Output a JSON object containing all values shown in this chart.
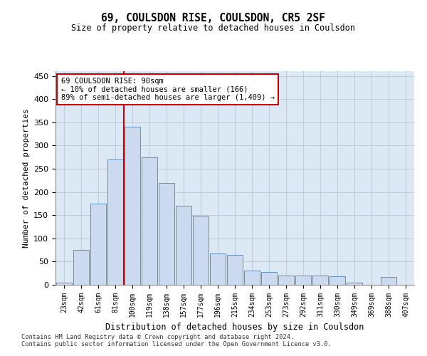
{
  "title": "69, COULSDON RISE, COULSDON, CR5 2SF",
  "subtitle": "Size of property relative to detached houses in Coulsdon",
  "xlabel": "Distribution of detached houses by size in Coulsdon",
  "ylabel": "Number of detached properties",
  "bins": [
    "23sqm",
    "42sqm",
    "61sqm",
    "81sqm",
    "100sqm",
    "119sqm",
    "138sqm",
    "157sqm",
    "177sqm",
    "196sqm",
    "215sqm",
    "234sqm",
    "253sqm",
    "273sqm",
    "292sqm",
    "311sqm",
    "330sqm",
    "349sqm",
    "369sqm",
    "388sqm",
    "407sqm"
  ],
  "values": [
    5,
    75,
    175,
    270,
    340,
    275,
    220,
    170,
    148,
    68,
    65,
    30,
    28,
    20,
    20,
    20,
    18,
    5,
    0,
    17,
    0
  ],
  "bar_color": "#ccdaf0",
  "bar_edge_color": "#6090c0",
  "vline_color": "#cc0000",
  "annotation_text": "69 COULSDON RISE: 90sqm\n← 10% of detached houses are smaller (166)\n89% of semi-detached houses are larger (1,409) →",
  "annotation_box_color": "#ffffff",
  "annotation_box_edge": "#cc0000",
  "footer1": "Contains HM Land Registry data © Crown copyright and database right 2024.",
  "footer2": "Contains public sector information licensed under the Open Government Licence v3.0.",
  "ylim": [
    0,
    460
  ],
  "yticks": [
    0,
    50,
    100,
    150,
    200,
    250,
    300,
    350,
    400,
    450
  ],
  "background_color": "#ffffff",
  "plot_bg_color": "#dde8f5",
  "grid_color": "#b0bfd0"
}
